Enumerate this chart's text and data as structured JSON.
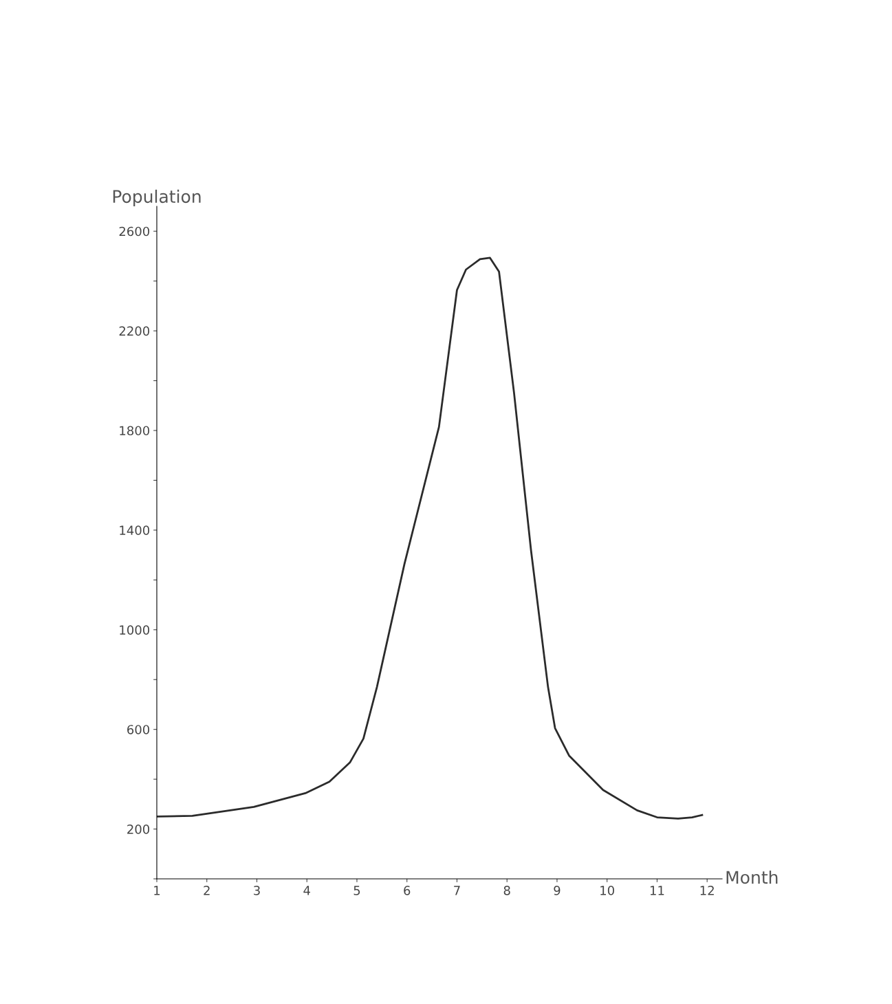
{
  "chart_data": {
    "type": "line",
    "xlabel": "Month",
    "ylabel": "Population",
    "x": [
      1,
      1.71,
      2.94,
      3.97,
      4.45,
      4.86,
      5.13,
      5.4,
      5.95,
      6.64,
      7.0,
      7.18,
      7.46,
      7.66,
      7.84,
      8.14,
      8.48,
      8.82,
      8.96,
      9.24,
      9.92,
      10.6,
      11.0,
      11.42,
      11.7,
      11.9
    ],
    "series": [
      {
        "color": "#2b2b2b",
        "values": [
          250,
          253,
          289,
          344,
          390,
          467,
          563,
          770,
          1264,
          1814,
          2364,
          2446,
          2488,
          2493,
          2438,
          1952,
          1319,
          770,
          605,
          495,
          357,
          275,
          247,
          242,
          247,
          256
        ]
      }
    ],
    "xlim": [
      1,
      12.3
    ],
    "xticks": [
      1,
      2,
      3,
      4,
      5,
      6,
      7,
      8,
      9,
      10,
      11,
      12
    ],
    "ylim": [
      0,
      2700
    ],
    "yticks": [
      {
        "value": 0,
        "label": null
      },
      200,
      {
        "value": 400,
        "label": null
      },
      600,
      {
        "value": 800,
        "label": null
      },
      1000,
      {
        "value": 1200,
        "label": null
      },
      1400,
      {
        "value": 1600,
        "label": null
      },
      1800,
      {
        "value": 2000,
        "label": null
      },
      2200,
      {
        "value": 2400,
        "label": null
      },
      2600
    ],
    "grid": false,
    "legend": false,
    "marker": "none",
    "line_style": "solid"
  }
}
